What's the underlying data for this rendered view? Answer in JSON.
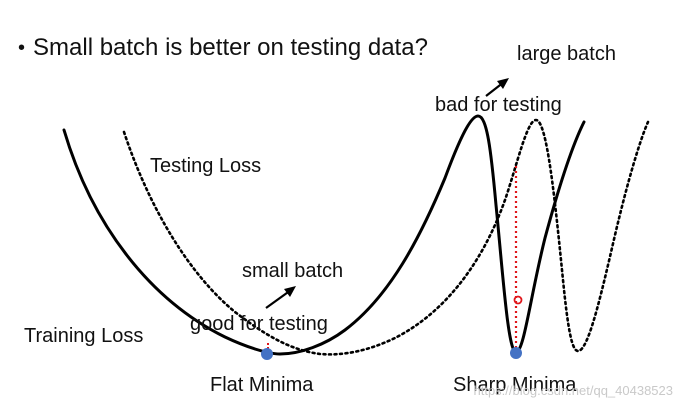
{
  "heading": {
    "bullet": "•",
    "text": "Small batch is better on testing data?"
  },
  "labels": {
    "training_loss": "Training Loss",
    "testing_loss": "Testing Loss",
    "flat_minima": "Flat Minima",
    "sharp_minima": "Sharp Minima",
    "small_batch": "small batch",
    "good_for_testing": "good for testing",
    "large_batch": "large batch",
    "bad_for_testing": "bad for testing"
  },
  "watermark": "https://blog.csdn.net/qq_40438523",
  "colors": {
    "training_curve": "#000000",
    "testing_curve": "#000000",
    "minima_point": "#4472c4",
    "gap_line": "#e0161b"
  }
}
